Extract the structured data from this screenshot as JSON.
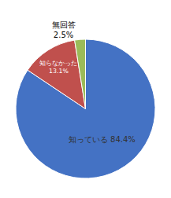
{
  "chart_data": {
    "type": "pie",
    "values": [
      84.4,
      13.1,
      2.5
    ],
    "value_labels": [
      "知っている 84.4%",
      "知らなかった\n13.1%",
      "無回答\n2.5%"
    ],
    "colors": [
      "#4472c4",
      "#c0504d",
      "#9bbb59"
    ],
    "data_labels": true
  }
}
